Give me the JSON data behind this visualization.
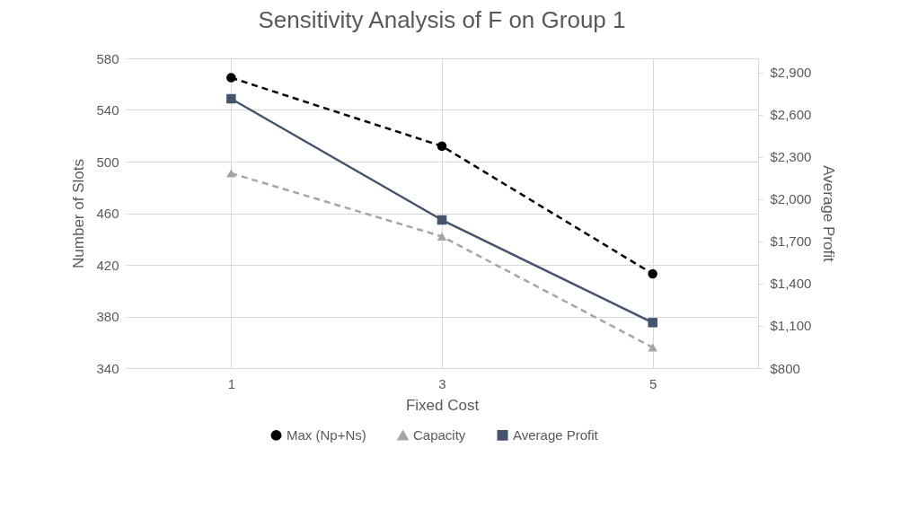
{
  "chart_data": {
    "type": "line",
    "title": "Sensitivity Analysis of F on Group 1",
    "xlabel": "Fixed Cost",
    "ylabel": "Number of Slots",
    "y2label": "Average Profit",
    "categories": [
      "1",
      "3",
      "5"
    ],
    "series": [
      {
        "name": "Max (Np+Ns)",
        "color": "#000000",
        "values": [
          565,
          512,
          413
        ],
        "marker": "circle",
        "line_style": "dashed"
      },
      {
        "name": "Capacity",
        "color": "#a5a5a5",
        "values": [
          491,
          442,
          356
        ],
        "marker": "triangle",
        "line_style": "dashed"
      },
      {
        "name": "Average Profit",
        "color": "#44546a",
        "values": [
          2713,
          1852,
          1123
        ],
        "marker": "square",
        "line_style": "solid",
        "axis": "y2"
      }
    ],
    "ylim": [
      340,
      580
    ],
    "yticks": [
      340,
      380,
      420,
      460,
      500,
      540,
      580
    ],
    "y2lim": [
      800,
      3000
    ],
    "y2ticks": [
      {
        "value": 800,
        "label": "$800"
      },
      {
        "value": 1100,
        "label": "$1,100"
      },
      {
        "value": 1400,
        "label": "$1,400"
      },
      {
        "value": 1700,
        "label": "$1,700"
      },
      {
        "value": 2000,
        "label": "$2,000"
      },
      {
        "value": 2300,
        "label": "$2,300"
      },
      {
        "value": 2600,
        "label": "$2,600"
      },
      {
        "value": 2900,
        "label": "$2,900"
      }
    ],
    "grid": true,
    "legend": "bottom"
  }
}
